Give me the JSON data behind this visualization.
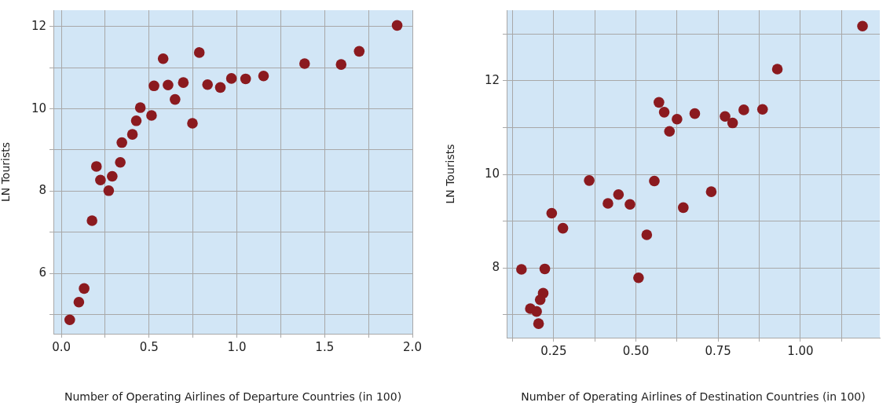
{
  "chart_data": [
    {
      "type": "scatter",
      "xlabel": "Number of Operating Airlines of Departure Countries (in 100)",
      "ylabel": "LN Tourists",
      "grid": true,
      "marker": "circle",
      "legend": false,
      "xlim": [
        -0.045,
        2.0
      ],
      "ylim": [
        4.53,
        12.4
      ],
      "xticks": [
        {
          "value": 0,
          "label": "0.0"
        },
        {
          "value": 0.25,
          "label": null
        },
        0.5,
        {
          "value": 0.75,
          "label": null
        },
        {
          "value": 1,
          "label": "1.0"
        },
        {
          "value": 1.25,
          "label": null
        },
        1.5,
        {
          "value": 1.75,
          "label": null
        },
        {
          "value": 2,
          "label": "2.0"
        }
      ],
      "yticks": [
        {
          "value": 5,
          "label": null
        },
        6,
        {
          "value": 7,
          "label": null
        },
        8,
        {
          "value": 9,
          "label": null
        },
        10,
        {
          "value": 11,
          "label": null
        },
        12
      ],
      "series": [
        {
          "color": "#8b1a1f",
          "x": [
            0.048,
            0.1,
            0.13,
            0.175,
            0.2,
            0.223,
            0.27,
            0.29,
            0.336,
            0.345,
            0.405,
            0.427,
            0.45,
            0.514,
            0.528,
            0.58,
            0.608,
            0.648,
            0.695,
            0.747,
            0.786,
            0.833,
            0.906,
            0.969,
            1.05,
            1.152,
            1.386,
            1.594,
            1.697,
            1.913
          ],
          "values": [
            4.87,
            5.3,
            5.63,
            7.28,
            8.6,
            8.27,
            8.01,
            8.36,
            8.7,
            9.18,
            9.38,
            9.71,
            10.03,
            9.84,
            10.56,
            11.22,
            10.58,
            10.23,
            10.64,
            9.65,
            11.37,
            10.59,
            10.52,
            10.74,
            10.73,
            10.8,
            11.1,
            11.08,
            11.4,
            12.03
          ]
        }
      ]
    },
    {
      "type": "scatter",
      "xlabel": "Number of Operating Airlines of Destination Countries (in 100)",
      "ylabel": "LN Tourists",
      "grid": true,
      "marker": "circle",
      "legend": false,
      "xlim": [
        0.107,
        1.2415
      ],
      "ylim": [
        6.51,
        13.51
      ],
      "xticks": [
        {
          "value": 0.125,
          "label": null
        },
        0.25,
        {
          "value": 0.375,
          "label": null
        },
        {
          "value": 0.5,
          "label": "0.50"
        },
        {
          "value": 0.625,
          "label": null
        },
        0.75,
        {
          "value": 0.875,
          "label": null
        },
        {
          "value": 1.0,
          "label": "1.00"
        },
        {
          "value": 1.125,
          "label": null
        }
      ],
      "yticks": [
        {
          "value": 7,
          "label": null
        },
        8,
        {
          "value": 9,
          "label": null
        },
        10,
        {
          "value": 11,
          "label": null
        },
        12,
        {
          "value": 13,
          "label": null
        }
      ],
      "series": [
        {
          "color": "#8b1a1f",
          "x": [
            0.152,
            0.223,
            0.218,
            0.209,
            0.179,
            0.198,
            0.204,
            0.244,
            0.278,
            0.358,
            0.415,
            0.447,
            0.482,
            0.533,
            0.508,
            0.556,
            0.57,
            0.586,
            0.625,
            0.602,
            0.644,
            0.679,
            0.729,
            0.771,
            0.794,
            0.828,
            0.885,
            0.93,
            1.189
          ],
          "values": [
            7.97,
            7.98,
            7.46,
            7.32,
            7.13,
            7.07,
            6.81,
            9.17,
            8.85,
            9.87,
            9.38,
            9.57,
            9.36,
            8.71,
            7.79,
            9.86,
            11.54,
            11.33,
            11.18,
            10.92,
            9.29,
            11.3,
            9.63,
            11.24,
            11.1,
            11.38,
            11.39,
            12.25,
            13.17
          ]
        }
      ]
    }
  ]
}
